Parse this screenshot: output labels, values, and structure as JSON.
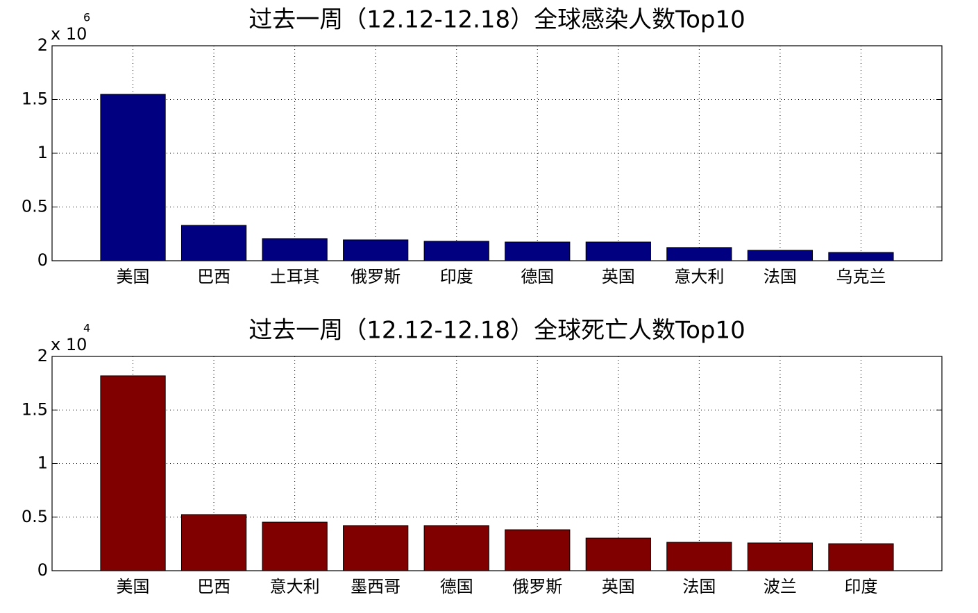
{
  "chart_data": [
    {
      "type": "bar",
      "title": "过去一周（12.12-12.18）全球感染人数Top10",
      "axis_multiplier": "x 10",
      "axis_exponent": "6",
      "categories": [
        "美国",
        "巴西",
        "土耳其",
        "俄罗斯",
        "印度",
        "德国",
        "英国",
        "意大利",
        "法国",
        "乌克兰"
      ],
      "values": [
        1548000,
        329000,
        206000,
        194000,
        181000,
        174000,
        174000,
        123000,
        97000,
        77000
      ],
      "color": "#000080",
      "ylim": [
        0,
        2000000
      ],
      "yticks": [
        0,
        {
          "value": 500000,
          "label": "0.5"
        },
        {
          "value": 1000000,
          "label": "1"
        },
        {
          "value": 1500000,
          "label": "1.5"
        },
        {
          "value": 2000000,
          "label": "2"
        }
      ],
      "grid": true
    },
    {
      "type": "bar",
      "title": "过去一周（12.12-12.18）全球死亡人数Top10",
      "axis_multiplier": "x 10",
      "axis_exponent": "4",
      "categories": [
        "美国",
        "巴西",
        "意大利",
        "墨西哥",
        "德国",
        "俄罗斯",
        "英国",
        "法国",
        "波兰",
        "印度"
      ],
      "values": [
        18190,
        5240,
        4530,
        4210,
        4210,
        3820,
        3040,
        2650,
        2590,
        2520
      ],
      "color": "#800000",
      "ylim": [
        0,
        20000
      ],
      "yticks": [
        0,
        {
          "value": 5000,
          "label": "0.5"
        },
        {
          "value": 10000,
          "label": "1"
        },
        {
          "value": 15000,
          "label": "1.5"
        },
        {
          "value": 20000,
          "label": "2"
        }
      ],
      "grid": true
    }
  ]
}
